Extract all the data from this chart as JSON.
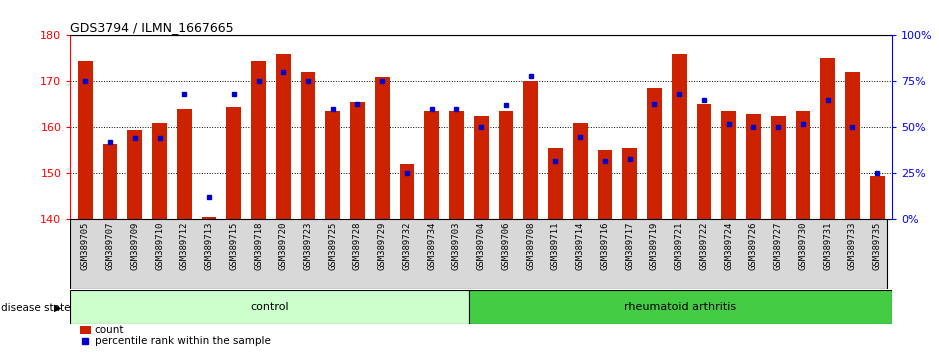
{
  "title": "GDS3794 / ILMN_1667665",
  "samples": [
    "GSM389705",
    "GSM389707",
    "GSM389709",
    "GSM389710",
    "GSM389712",
    "GSM389713",
    "GSM389715",
    "GSM389718",
    "GSM389720",
    "GSM389723",
    "GSM389725",
    "GSM389728",
    "GSM389729",
    "GSM389732",
    "GSM389734",
    "GSM389703",
    "GSM389704",
    "GSM389706",
    "GSM389708",
    "GSM389711",
    "GSM389714",
    "GSM389716",
    "GSM389717",
    "GSM389719",
    "GSM389721",
    "GSM389722",
    "GSM389724",
    "GSM389726",
    "GSM389727",
    "GSM389730",
    "GSM389731",
    "GSM389733",
    "GSM389735"
  ],
  "counts": [
    174.5,
    156.5,
    159.5,
    161.0,
    164.0,
    140.5,
    164.5,
    174.5,
    176.0,
    172.0,
    163.5,
    165.5,
    171.0,
    152.0,
    163.5,
    163.5,
    162.5,
    163.5,
    170.0,
    155.5,
    161.0,
    155.0,
    155.5,
    168.5,
    176.0,
    165.0,
    163.5,
    163.0,
    162.5,
    163.5,
    175.0,
    172.0,
    149.5
  ],
  "percentile_ranks": [
    75,
    42,
    44,
    44,
    68,
    12,
    68,
    75,
    80,
    75,
    60,
    63,
    75,
    25,
    60,
    60,
    50,
    62,
    78,
    32,
    45,
    32,
    33,
    63,
    68,
    65,
    52,
    50,
    50,
    52,
    65,
    50,
    25
  ],
  "n_control": 16,
  "ylim_left": [
    140,
    180
  ],
  "ylim_right": [
    0,
    100
  ],
  "yticks_left": [
    140,
    150,
    160,
    170,
    180
  ],
  "yticks_right": [
    0,
    25,
    50,
    75,
    100
  ],
  "bar_color": "#cc2200",
  "dot_color": "#0000cc",
  "control_color": "#ccffcc",
  "ra_color": "#44cc44",
  "label_fontsize": 6.5,
  "tick_fontsize": 8,
  "bar_width": 0.6
}
